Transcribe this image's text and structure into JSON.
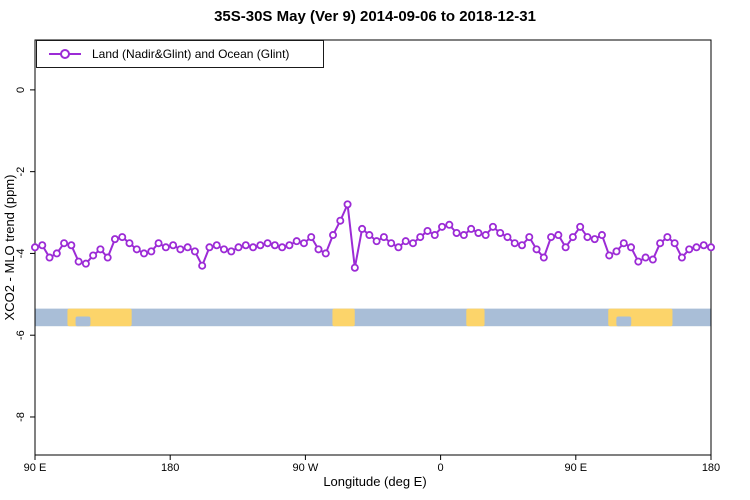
{
  "title": "35S-30S May (Ver 9)   2014-09-06 to 2018-12-31",
  "legend": {
    "label": "Land (Nadir&Glint) and Ocean (Glint)"
  },
  "axes": {
    "xlabel": "Longitude (deg E)",
    "ylabel": "XCO2 - MLO trend (ppm)"
  },
  "colors": {
    "line": "#9c2bd6",
    "marker_fill": "#ffffff",
    "ocean_band": "#a9bed7",
    "land_band": "#fcd46a",
    "axis": "#000000"
  },
  "chart_data": {
    "type": "line",
    "title": "35S-30S May (Ver 9)   2014-09-06 to 2018-12-31",
    "legend": "Land (Nadir&Glint) and Ocean (Glint)",
    "xlabel": "Longitude (deg E)",
    "ylabel": "XCO2 - MLO trend (ppm)",
    "x_axis_note": "axis spans 450 deg eastward starting at 90E: 90E,180,90W,0,90E,180",
    "xlim": [
      0,
      450
    ],
    "ylim": [
      -8.93,
      1.22
    ],
    "x_tick_positions": [
      0,
      90,
      180,
      270,
      360,
      450
    ],
    "x_tick_labels": [
      "90 E",
      "180",
      "90 W",
      "0",
      "90 E",
      "180"
    ],
    "y_tick_values": [
      0,
      -2,
      -4,
      -6,
      -8
    ],
    "y_tick_labels": [
      "0",
      "-2",
      "-4",
      "-6",
      "-8"
    ],
    "grid": false,
    "legend_position": "top-left",
    "values": [
      -3.85,
      -3.8,
      -4.1,
      -4.0,
      -3.75,
      -3.8,
      -4.2,
      -4.25,
      -4.05,
      -3.9,
      -4.1,
      -3.65,
      -3.6,
      -3.75,
      -3.9,
      -4.0,
      -3.95,
      -3.75,
      -3.85,
      -3.8,
      -3.9,
      -3.85,
      -3.95,
      -4.3,
      -3.85,
      -3.8,
      -3.9,
      -3.95,
      -3.85,
      -3.8,
      -3.85,
      -3.8,
      -3.75,
      -3.8,
      -3.85,
      -3.8,
      -3.7,
      -3.75,
      -3.6,
      -3.9,
      -4.0,
      -3.55,
      -3.2,
      -2.8,
      -4.35,
      -3.4,
      -3.55,
      -3.7,
      -3.6,
      -3.75,
      -3.85,
      -3.7,
      -3.75,
      -3.6,
      -3.45,
      -3.55,
      -3.35,
      -3.3,
      -3.5,
      -3.55,
      -3.4,
      -3.5,
      -3.55,
      -3.35,
      -3.5,
      -3.6,
      -3.75,
      -3.8,
      -3.6,
      -3.9,
      -4.1,
      -3.6,
      -3.55,
      -3.85,
      -3.6,
      -3.35,
      -3.6,
      -3.65,
      -3.55,
      -4.05,
      -3.95,
      -3.75,
      -3.85,
      -4.2,
      -4.1,
      -4.15,
      -3.75,
      -3.6,
      -3.75,
      -4.1,
      -3.9,
      -3.85,
      -3.8,
      -3.85
    ],
    "land_band": {
      "description": "land/ocean indicator strip at 35S-30S",
      "y_range": [
        -5.35,
        -5.78
      ],
      "land_patches_frac": [
        [
          0.048,
          0.143
        ],
        [
          0.44,
          0.473
        ],
        [
          0.638,
          0.665
        ],
        [
          0.848,
          0.943
        ]
      ],
      "ocean_notches_frac": [
        [
          0.06,
          0.082
        ],
        [
          0.86,
          0.882
        ]
      ]
    }
  }
}
